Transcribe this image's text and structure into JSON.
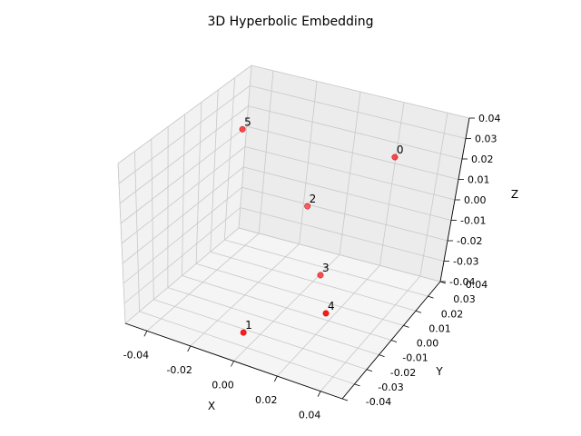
{
  "chart_data": {
    "type": "scatter",
    "projection": "3d",
    "title": "3D Hyperbolic Embedding",
    "xlabel": "X",
    "ylabel": "Y",
    "zlabel": "Z",
    "xlim": [
      -0.05,
      0.05
    ],
    "ylim": [
      -0.04,
      0.04
    ],
    "zlim": [
      -0.04,
      0.04
    ],
    "xticks": [
      "-0.04",
      "-0.02",
      "0.00",
      "0.02",
      "0.04"
    ],
    "yticks": [
      "-0.04",
      "-0.03",
      "-0.02",
      "-0.01",
      "0.00",
      "0.01",
      "0.02",
      "0.03",
      "0.04"
    ],
    "zticks": [
      "-0.04",
      "-0.03",
      "-0.02",
      "-0.01",
      "0.00",
      "0.01",
      "0.02",
      "0.03",
      "0.04"
    ],
    "grid": true,
    "marker_color": "#ff0000",
    "points": [
      {
        "label": "0",
        "x": 0.036,
        "y": 0.011,
        "z": 0.036
      },
      {
        "label": "1",
        "x": -0.003,
        "y": -0.028,
        "z": -0.035
      },
      {
        "label": "2",
        "x": -0.012,
        "y": 0.03,
        "z": -0.013
      },
      {
        "label": "3",
        "x": 0.006,
        "y": 0.015,
        "z": -0.032
      },
      {
        "label": "4",
        "x": 0.035,
        "y": -0.03,
        "z": -0.012
      },
      {
        "label": "5",
        "x": -0.032,
        "y": 0.011,
        "z": 0.031
      }
    ]
  }
}
